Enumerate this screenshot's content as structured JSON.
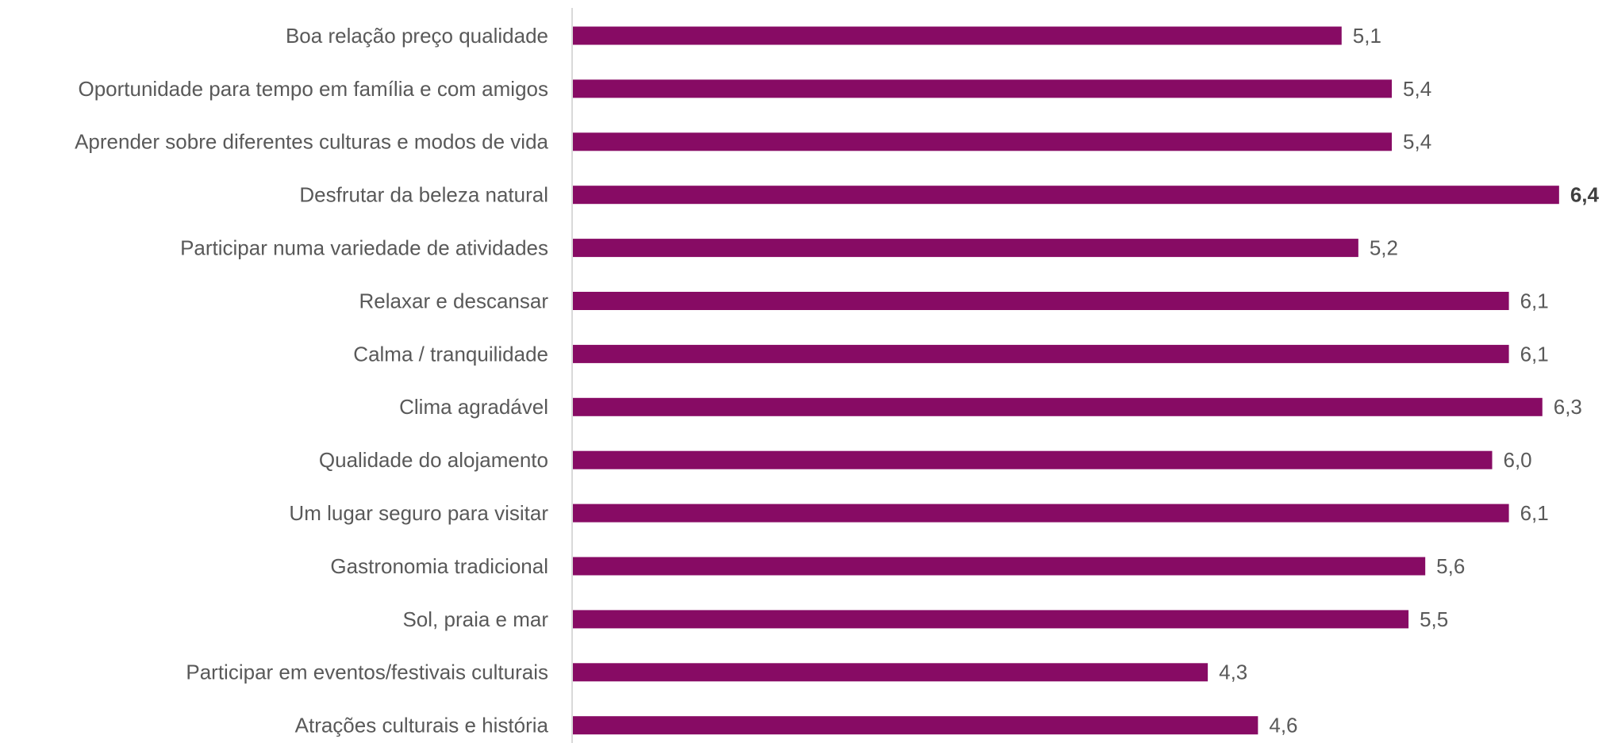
{
  "chart_data": {
    "type": "barh",
    "color": "#870b64",
    "categories": [
      "Boa relação preço qualidade",
      "Oportunidade para tempo em família e com amigos",
      "Aprender sobre diferentes culturas e modos de vida",
      "Desfrutar da beleza natural",
      "Participar numa variedade de atividades",
      "Relaxar e descansar",
      "Calma / tranquilidade",
      "Clima agradável",
      "Qualidade do alojamento",
      "Um lugar seguro para visitar",
      "Gastronomia tradicional",
      "Sol, praia e mar",
      "Participar em eventos/festivais culturais",
      "Atrações culturais e história"
    ],
    "values": [
      5.1,
      5.4,
      5.4,
      6.4,
      5.2,
      6.1,
      6.1,
      6.3,
      6.0,
      6.1,
      5.6,
      5.5,
      4.3,
      4.6
    ],
    "value_labels": [
      "5,1",
      "5,4",
      "5,4",
      "6,4",
      "5,2",
      "6,1",
      "6,1",
      "6,3",
      "6,0",
      "6,1",
      "5,6",
      "5,5",
      "4,3",
      "4,6"
    ],
    "xlim": [
      0.5,
      6.6
    ]
  }
}
